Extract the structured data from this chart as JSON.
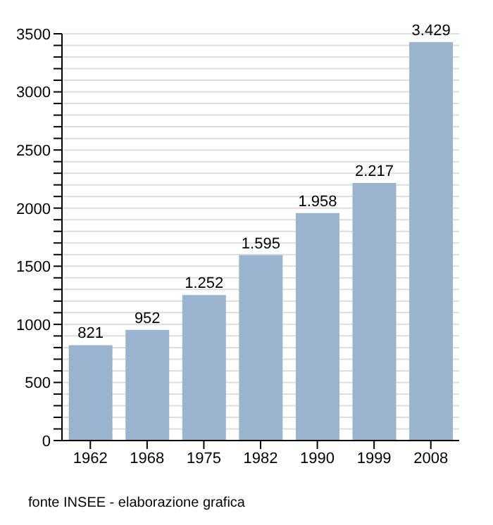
{
  "chart_data": {
    "type": "bar",
    "categories": [
      "1962",
      "1968",
      "1975",
      "1982",
      "1990",
      "1999",
      "2008"
    ],
    "values": [
      821,
      952,
      1252,
      1595,
      1958,
      2217,
      3429
    ],
    "value_labels": [
      "821",
      "952",
      "1.252",
      "1.595",
      "1.958",
      "2.217",
      "3.429"
    ],
    "color": "#9ab3cf",
    "ylim": [
      0,
      3500
    ],
    "yticks": [
      0,
      {
        "value": 100,
        "label": null
      },
      {
        "value": 200,
        "label": null
      },
      {
        "value": 300,
        "label": null
      },
      {
        "value": 400,
        "label": null
      },
      500,
      {
        "value": 600,
        "label": null
      },
      {
        "value": 700,
        "label": null
      },
      {
        "value": 800,
        "label": null
      },
      {
        "value": 900,
        "label": null
      },
      1000,
      {
        "value": 1100,
        "label": null
      },
      {
        "value": 1200,
        "label": null
      },
      {
        "value": 1300,
        "label": null
      },
      {
        "value": 1400,
        "label": null
      },
      1500,
      {
        "value": 1600,
        "label": null
      },
      {
        "value": 1700,
        "label": null
      },
      {
        "value": 1800,
        "label": null
      },
      {
        "value": 1900,
        "label": null
      },
      2000,
      {
        "value": 2100,
        "label": null
      },
      {
        "value": 2200,
        "label": null
      },
      {
        "value": 2300,
        "label": null
      },
      {
        "value": 2400,
        "label": null
      },
      2500,
      {
        "value": 2600,
        "label": null
      },
      {
        "value": 2700,
        "label": null
      },
      {
        "value": 2800,
        "label": null
      },
      {
        "value": 2900,
        "label": null
      },
      3000,
      {
        "value": 3100,
        "label": null
      },
      {
        "value": 3200,
        "label": null
      },
      {
        "value": 3300,
        "label": null
      },
      {
        "value": 3400,
        "label": null
      },
      3500
    ],
    "grid": "y",
    "annotations": [
      "fonte INSEE - elaborazione grafica"
    ]
  }
}
